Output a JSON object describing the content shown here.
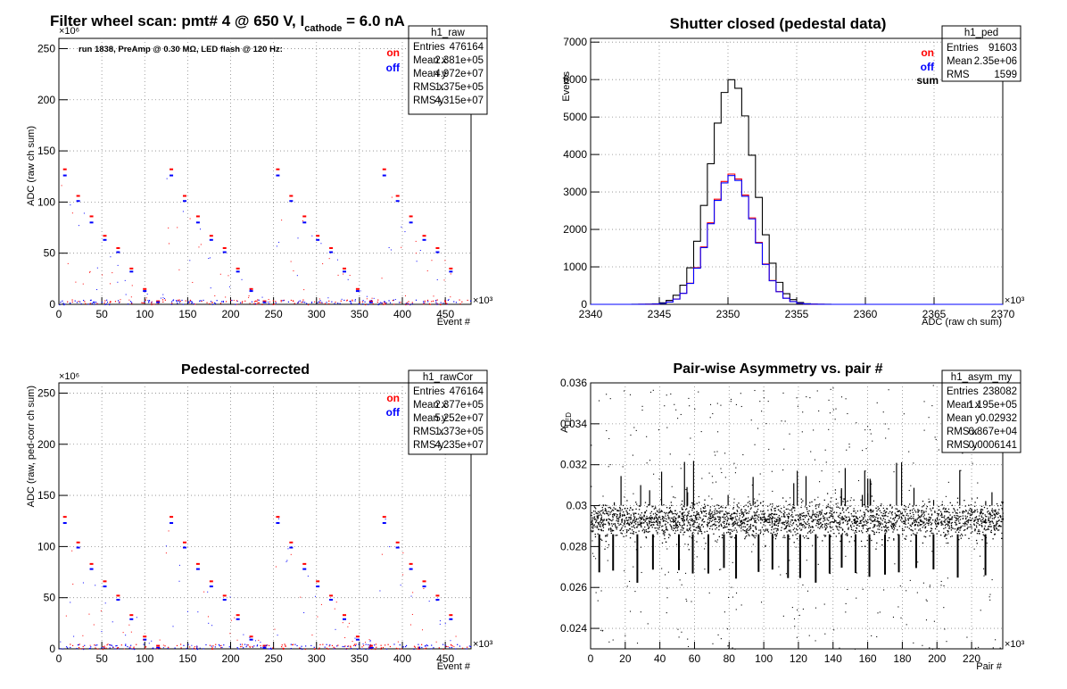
{
  "chart_data": [
    {
      "panel": "top-left",
      "type": "scatter",
      "title": "Filter wheel scan: pmt#   4 @   650 V, I",
      "title_sub": "cathode",
      "title_suffix": " = 6.0 nA",
      "annotation": "run 1838, PreAmp @ 0.30 MΩ, LED flash @  120 Hz:",
      "xlabel": "Event #",
      "ylabel": "ADC (raw ch sum)",
      "x_multiplier": "×10³",
      "y_multiplier": "×10⁶",
      "xlim": [
        0,
        480
      ],
      "ylim": [
        0,
        260
      ],
      "xticks": [
        "0",
        "50",
        "100",
        "150",
        "200",
        "250",
        "300",
        "350",
        "400",
        "450"
      ],
      "yticks": [
        "0",
        "50",
        "100",
        "150",
        "200",
        "250"
      ],
      "legend": [
        {
          "label": "on",
          "color": "#ff0000"
        },
        {
          "label": "off",
          "color": "#0000ff"
        }
      ],
      "stats": {
        "name": "h1_raw",
        "rows": [
          {
            "label": "Entries",
            "value": "476164"
          },
          {
            "label": "Mean x",
            "value": "2.381e+05"
          },
          {
            "label": "Mean y",
            "value": "4.972e+07"
          },
          {
            "label": "RMS x",
            "value": "1.375e+05"
          },
          {
            "label": "RMS y",
            "value": "4.315e+07"
          }
        ]
      },
      "levels_on": [
        132,
        106,
        86,
        67,
        55,
        35,
        15,
        3
      ],
      "levels_off": [
        126,
        101,
        80,
        63,
        51,
        32,
        13,
        2
      ],
      "step_period": 15.5
    },
    {
      "panel": "top-right",
      "type": "histogram",
      "title": "Shutter closed (pedestal data)",
      "xlabel": "ADC (raw ch sum)",
      "ylabel": "Events",
      "x_multiplier": "×10³",
      "xlim": [
        2340,
        2370
      ],
      "ylim": [
        0,
        7100
      ],
      "xticks": [
        "2340",
        "2345",
        "2350",
        "2355",
        "2360",
        "2365",
        "2370"
      ],
      "yticks": [
        "0",
        "1000",
        "2000",
        "3000",
        "4000",
        "5000",
        "6000",
        "7000"
      ],
      "legend": [
        {
          "label": "on",
          "color": "#ff0000"
        },
        {
          "label": "off",
          "color": "#0000ff"
        },
        {
          "label": "sum",
          "color": "#000000"
        }
      ],
      "stats": {
        "name": "h1_ped",
        "rows": [
          {
            "label": "Entries",
            "value": "91603"
          },
          {
            "label": "Mean",
            "value": "2.35e+06"
          },
          {
            "label": "RMS",
            "value": "1599"
          }
        ]
      },
      "series": [
        {
          "name": "sum",
          "color": "#000000",
          "peak": 6000,
          "mean": 2350.3,
          "sigma": 1.6
        },
        {
          "name": "on",
          "color": "#ff0000",
          "peak": 3480,
          "mean": 2350.3,
          "sigma": 1.6
        },
        {
          "name": "off",
          "color": "#0000ff",
          "peak": 3440,
          "mean": 2350.3,
          "sigma": 1.6
        }
      ]
    },
    {
      "panel": "bottom-left",
      "type": "scatter",
      "title": "Pedestal-corrected",
      "xlabel": "Event #",
      "ylabel": "ADC (raw, ped-corr ch sum)",
      "x_multiplier": "×10³",
      "y_multiplier": "×10⁶",
      "xlim": [
        0,
        480
      ],
      "ylim": [
        0,
        260
      ],
      "xticks": [
        "0",
        "50",
        "100",
        "150",
        "200",
        "250",
        "300",
        "350",
        "400",
        "450"
      ],
      "yticks": [
        "0",
        "50",
        "100",
        "150",
        "200",
        "250"
      ],
      "legend": [
        {
          "label": "on",
          "color": "#ff0000"
        },
        {
          "label": "off",
          "color": "#0000ff"
        }
      ],
      "stats": {
        "name": "h1_rawCor",
        "rows": [
          {
            "label": "Entries",
            "value": "476164"
          },
          {
            "label": "Mean x",
            "value": "2.377e+05"
          },
          {
            "label": "Mean y",
            "value": "5.252e+07"
          },
          {
            "label": "RMS x",
            "value": "1.373e+05"
          },
          {
            "label": "RMS y",
            "value": "4.235e+07"
          }
        ]
      },
      "levels_on": [
        129,
        104,
        83,
        66,
        52,
        33,
        12,
        3
      ],
      "levels_off": [
        123,
        99,
        78,
        61,
        48,
        29,
        9,
        1
      ],
      "step_period": 15.5
    },
    {
      "panel": "bottom-right",
      "type": "scatter",
      "title": "Pair-wise Asymmetry vs. pair #",
      "xlabel": "Pair #",
      "ylabel": "A",
      "ylabel_sub": "LED",
      "x_multiplier": "×10³",
      "xlim": [
        0,
        238
      ],
      "ylim": [
        0.023,
        0.036
      ],
      "xticks": [
        "0",
        "20",
        "40",
        "60",
        "80",
        "100",
        "120",
        "140",
        "160",
        "180",
        "200",
        "220"
      ],
      "yticks": [
        "0.024",
        "0.026",
        "0.028",
        "0.03",
        "0.032",
        "0.034",
        "0.036"
      ],
      "stats": {
        "name": "h1_asym_my",
        "rows": [
          {
            "label": "Entries",
            "value": "238082"
          },
          {
            "label": "Mean x",
            "value": "1.195e+05"
          },
          {
            "label": "Mean y",
            "value": "0.02932"
          },
          {
            "label": "RMS x",
            "value": "6.867e+04"
          },
          {
            "label": "RMS y",
            "value": "0.0006141"
          }
        ]
      },
      "band_center": 0.0293,
      "band_halfwidth": 0.0007,
      "dips_x": [
        5,
        13,
        27,
        36,
        51,
        59,
        68,
        77,
        84,
        97,
        105,
        114,
        121,
        130,
        138,
        145,
        153,
        161,
        170,
        178,
        188,
        198,
        212,
        228
      ]
    }
  ]
}
